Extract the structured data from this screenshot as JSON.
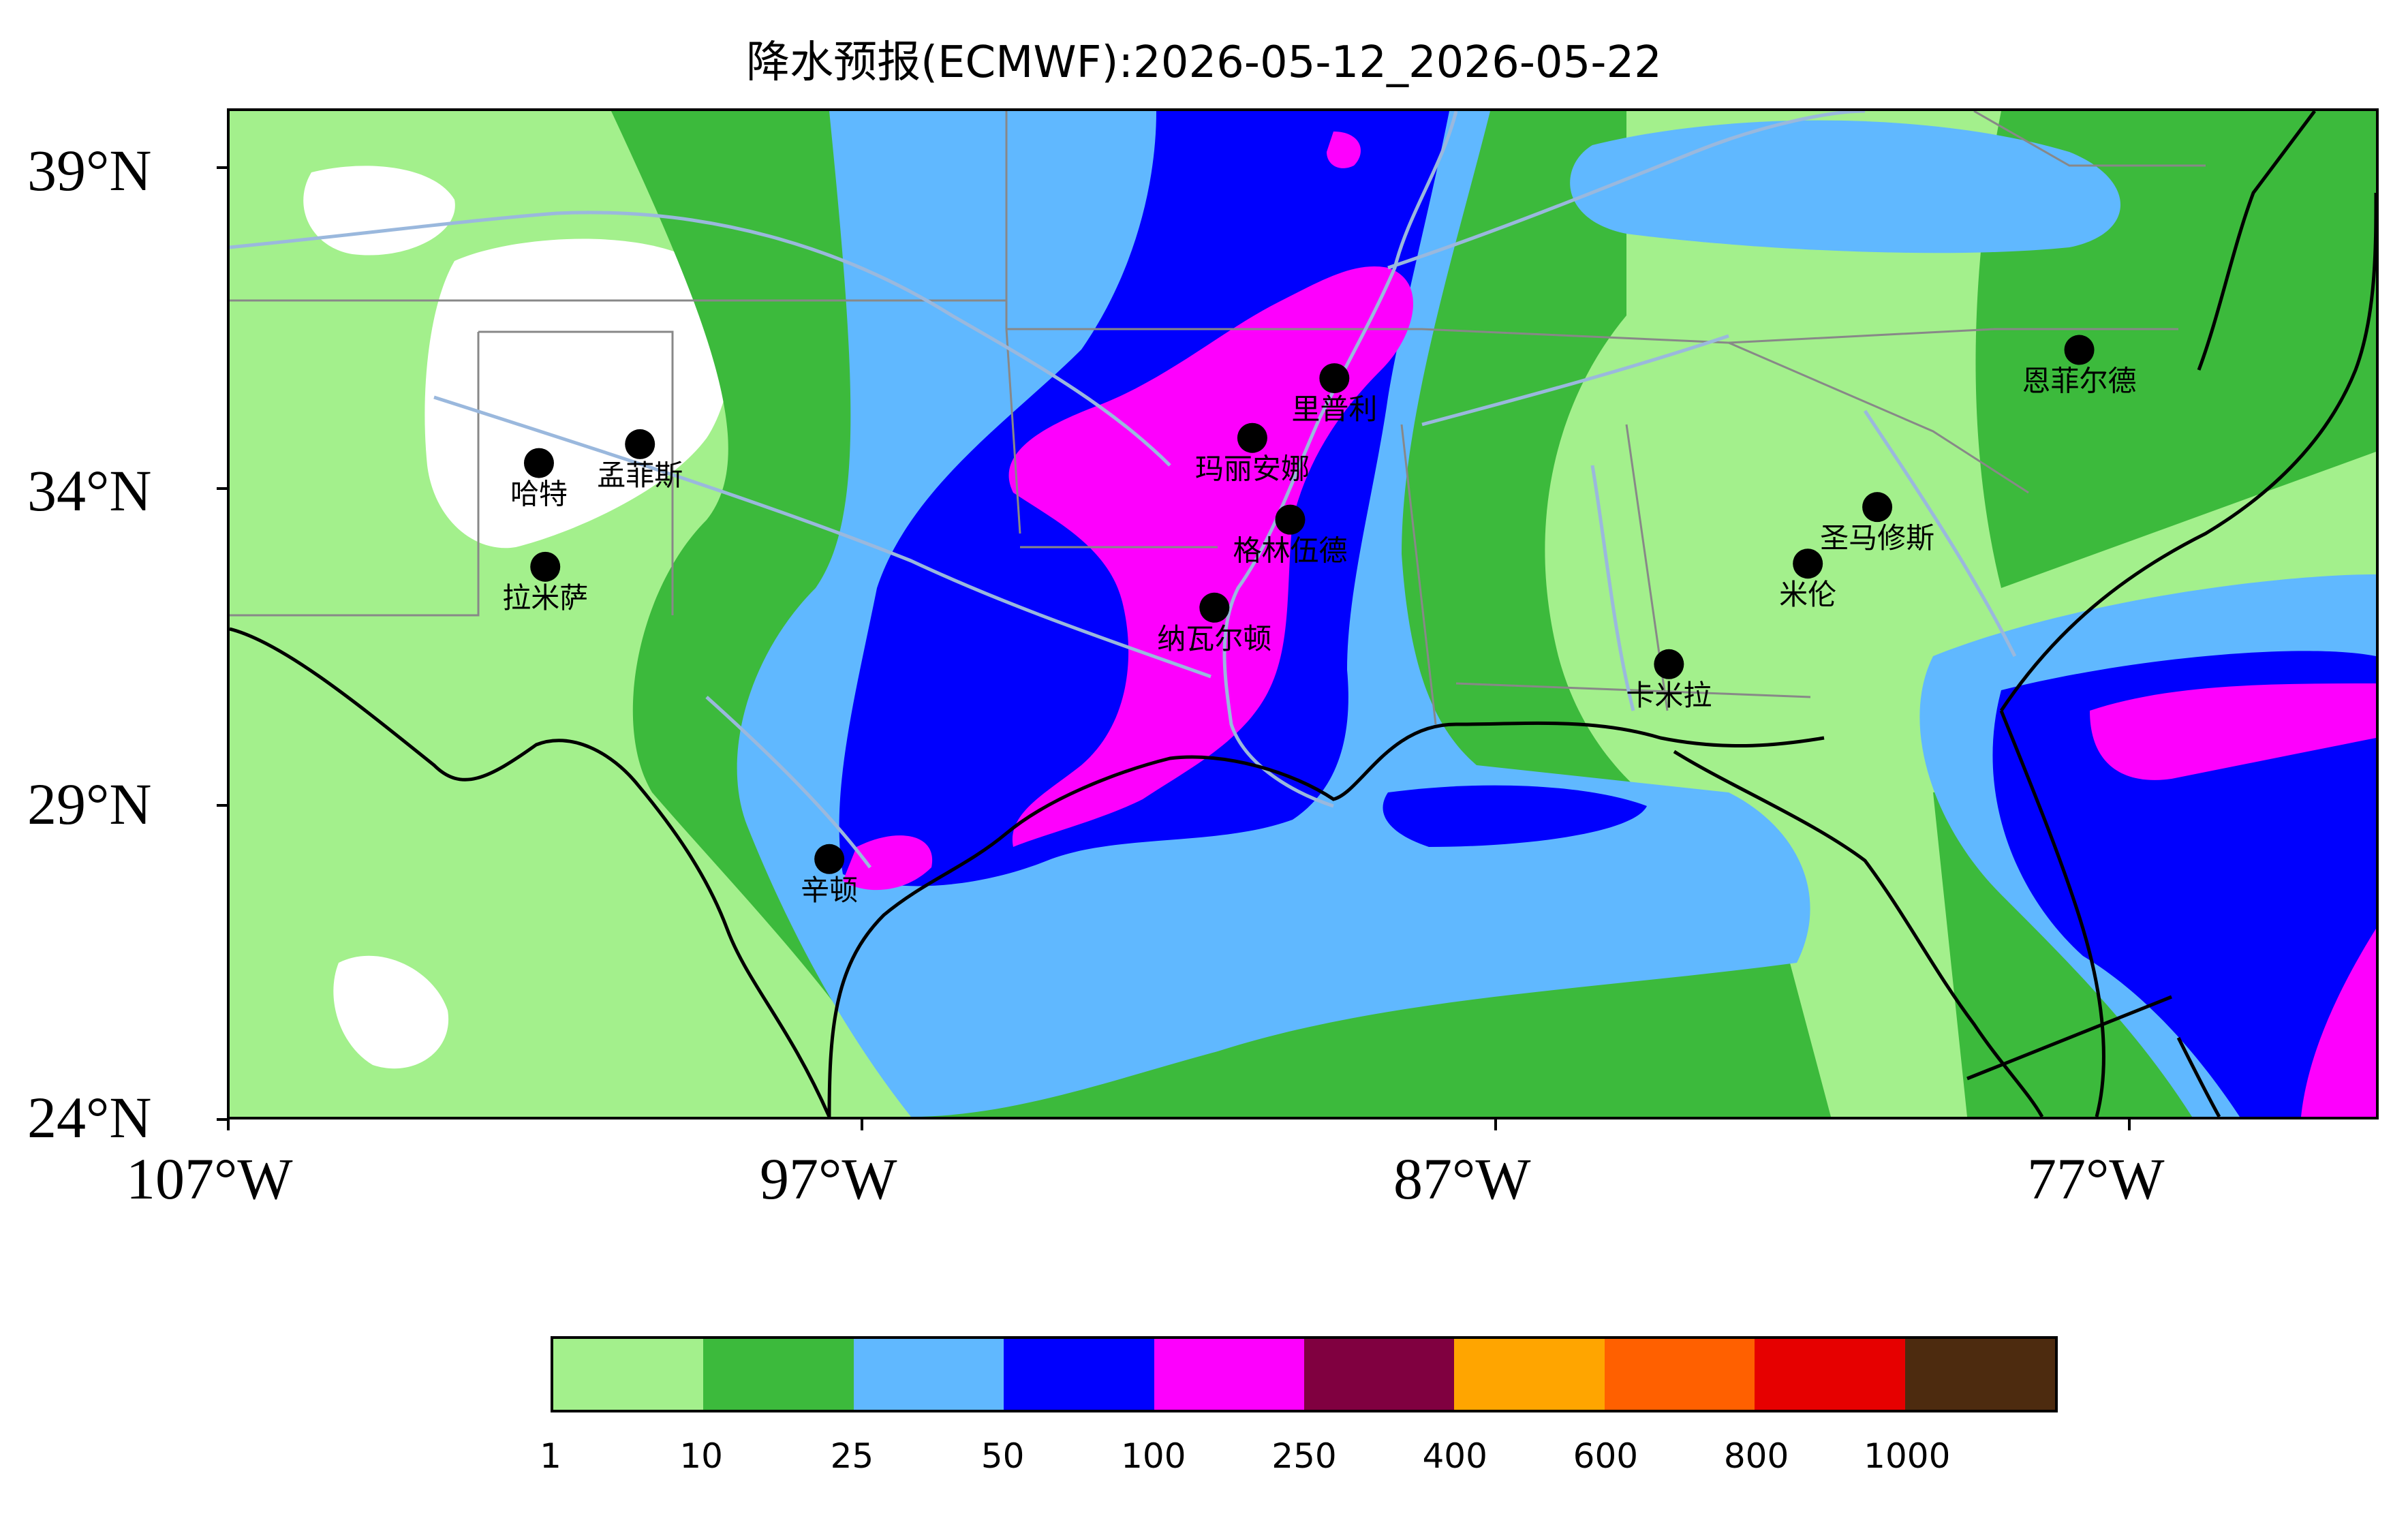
{
  "title": "降水预报(ECMWF):2026-05-12_2026-05-22",
  "lat_labels": [
    "39°N",
    "34°N",
    "29°N",
    "24°N"
  ],
  "lon_labels": [
    "107°W",
    "97°W",
    "87°W",
    "77°W"
  ],
  "extent": {
    "lon_min": -107,
    "lon_max": -73,
    "lat_min": 24,
    "lat_max": 40
  },
  "colors": {
    "c1": "#a3f08c",
    "c10": "#3cba3c",
    "c25": "#60b8ff",
    "c50": "#0000fe",
    "c100": "#fd00fd",
    "white": "#ffffff",
    "coast": "#000000",
    "river": "#9ab8dd",
    "border": "#888888"
  },
  "colorbar": {
    "colors": [
      "#a3f08c",
      "#3cba3c",
      "#60b8ff",
      "#0000fe",
      "#fd00fd",
      "#800040",
      "#ffa500",
      "#ff6000",
      "#e60000",
      "#4d2b0f"
    ],
    "labels": [
      "1",
      "10",
      "25",
      "50",
      "100",
      "250",
      "400",
      "600",
      "800",
      "1000"
    ]
  },
  "cities": [
    {
      "name": "哈特",
      "lon": -102.1,
      "lat": 34.4
    },
    {
      "name": "孟菲斯",
      "lon": -100.5,
      "lat": 34.7
    },
    {
      "name": "拉米萨",
      "lon": -102.0,
      "lat": 32.75
    },
    {
      "name": "里普利",
      "lon": -89.5,
      "lat": 35.75
    },
    {
      "name": "玛丽安娜",
      "lon": -90.8,
      "lat": 34.8
    },
    {
      "name": "格林伍德",
      "lon": -90.2,
      "lat": 33.5
    },
    {
      "name": "纳瓦尔顿",
      "lon": -91.4,
      "lat": 32.1
    },
    {
      "name": "辛顿",
      "lon": -97.5,
      "lat": 28.1
    },
    {
      "name": "卡米拉",
      "lon": -84.2,
      "lat": 31.2
    },
    {
      "name": "米伦",
      "lon": -82.0,
      "lat": 32.8
    },
    {
      "name": "圣马修斯",
      "lon": -80.9,
      "lat": 33.7
    },
    {
      "name": "恩菲尔德",
      "lon": -77.7,
      "lat": 36.2
    }
  ]
}
